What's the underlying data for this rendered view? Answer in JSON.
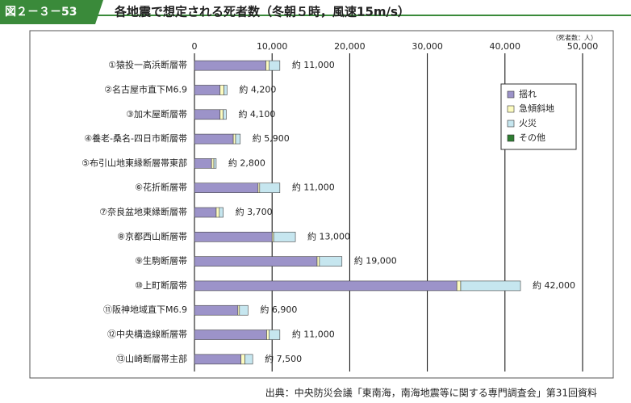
{
  "figure_label": "図２－３－53",
  "chart_data": {
    "type": "stacked-hbar",
    "title": "各地震で想定される死者数（冬朝５時，風速15m/s）",
    "unit_note": "（死者数：人）",
    "source": "出典：中央防災会議「東南海，南海地震等に関する専門調査会」第31回資料",
    "categories": [
      "①猿投一高浜断層帯",
      "②名古屋市直下M6.9",
      "③加木屋断層帯",
      "④養老-桑名-四日市断層帯",
      "⑤布引山地東縁断層帯東部",
      "⑥花折断層帯",
      "⑦奈良盆地東縁断層帯",
      "⑧京都西山断層帯",
      "⑨生駒断層帯",
      "⑩上町断層帯",
      "⑪阪神地域直下M6.9",
      "⑫中央構造線断層帯",
      "⑬山崎断層帯主部"
    ],
    "series": [
      {
        "name": "揺れ",
        "color": "#9c93c9",
        "values": [
          9200,
          3300,
          3300,
          5000,
          2200,
          8200,
          2800,
          10000,
          15800,
          33800,
          5600,
          9300,
          6000
        ]
      },
      {
        "name": "急傾斜地",
        "color": "#fdfcc0",
        "values": [
          400,
          500,
          400,
          300,
          300,
          200,
          400,
          200,
          300,
          500,
          200,
          300,
          500
        ]
      },
      {
        "name": "火災",
        "color": "#c6e6ef",
        "values": [
          1400,
          400,
          400,
          600,
          300,
          2600,
          500,
          2800,
          2900,
          7700,
          1100,
          1400,
          1000
        ]
      },
      {
        "name": "その他",
        "color": "#2e7d32",
        "values": [
          0,
          0,
          0,
          0,
          0,
          0,
          0,
          0,
          0,
          0,
          0,
          0,
          0
        ]
      }
    ],
    "totals": [
      11000,
      4200,
      4100,
      5900,
      2800,
      11000,
      3700,
      13000,
      19000,
      42000,
      6900,
      11000,
      7500
    ],
    "total_labels": [
      "約 11,000",
      "約 4,200",
      "約 4,100",
      "約 5,900",
      "約 2,800",
      "約 11,000",
      "約 3,700",
      "約 13,000",
      "約 19,000",
      "約 42,000",
      "約 6,900",
      "約 11,000",
      "約 7,500"
    ],
    "xlim": [
      0,
      50000
    ],
    "xticks": [
      0,
      {
        "value": 10000,
        "label": "10,000"
      },
      {
        "value": 20000,
        "label": "20,000"
      },
      {
        "value": 30000,
        "label": "30,000"
      },
      {
        "value": 40000,
        "label": "40,000"
      },
      {
        "value": 50000,
        "label": "50,000"
      }
    ],
    "grid": true,
    "legend": "upper-right"
  }
}
